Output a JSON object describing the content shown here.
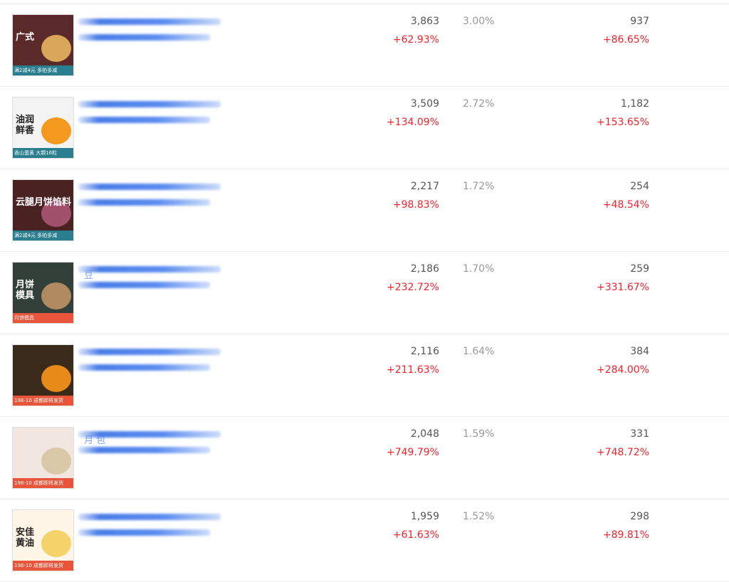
{
  "rows": [
    {
      "image_text": "满2减4元 多拍多减",
      "image_big": "广式",
      "theme": "#5a2a2a",
      "banner": "#2a7f8f",
      "blob": "#d9a65a",
      "title_hint": "",
      "sales": "3,863",
      "sales_change": "+62.93%",
      "rate": "3.00%",
      "buyers": "937",
      "buyers_change": "+86.65%"
    },
    {
      "image_text": "香山蛋黄 大颗16粒",
      "image_big": "油润\n鲜香",
      "theme": "#f3f3f3",
      "banner": "#2a7f8f",
      "blob": "#f39a1e",
      "title_hint": "",
      "sales": "3,509",
      "sales_change": "+134.09%",
      "rate": "2.72%",
      "buyers": "1,182",
      "buyers_change": "+153.65%"
    },
    {
      "image_text": "满2减4元 多拍多减",
      "image_big": "云腿月饼馅料",
      "theme": "#4a2222",
      "banner": "#2a7f8f",
      "blob": "#a0506a",
      "title_hint": "",
      "sales": "2,217",
      "sales_change": "+98.83%",
      "rate": "1.72%",
      "buyers": "254",
      "buyers_change": "+48.54%"
    },
    {
      "image_text": "月饼模具",
      "image_big": "月饼\n模具",
      "theme": "#33403a",
      "banner": "#e8553a",
      "blob": "#b08a60",
      "title_hint": "豆",
      "sales": "2,186",
      "sales_change": "+232.72%",
      "rate": "1.70%",
      "buyers": "259",
      "buyers_change": "+331.67%"
    },
    {
      "image_text": "198-10 成都即将发货",
      "image_big": "",
      "theme": "#3a2a1a",
      "banner": "#e8553a",
      "blob": "#e88a1a",
      "title_hint": "",
      "sales": "2,116",
      "sales_change": "+211.63%",
      "rate": "1.64%",
      "buyers": "384",
      "buyers_change": "+284.00%"
    },
    {
      "image_text": "198-10 成都即将发货",
      "image_big": "",
      "theme": "#f2e6e0",
      "banner": "#e8553a",
      "blob": "#d9c9a8",
      "title_hint": "月 包",
      "sales": "2,048",
      "sales_change": "+749.79%",
      "rate": "1.59%",
      "buyers": "331",
      "buyers_change": "+748.72%"
    },
    {
      "image_text": "198-10 成都即将发货",
      "image_big": "安佳\n黄油",
      "theme": "#fff6e8",
      "banner": "#e8553a",
      "blob": "#f5d36a",
      "title_hint": "",
      "sales": "1,959",
      "sales_change": "+61.63%",
      "rate": "1.52%",
      "buyers": "298",
      "buyers_change": "+89.81%"
    }
  ],
  "colors": {
    "positive": "#f5222d",
    "link": "#4a7de8"
  }
}
